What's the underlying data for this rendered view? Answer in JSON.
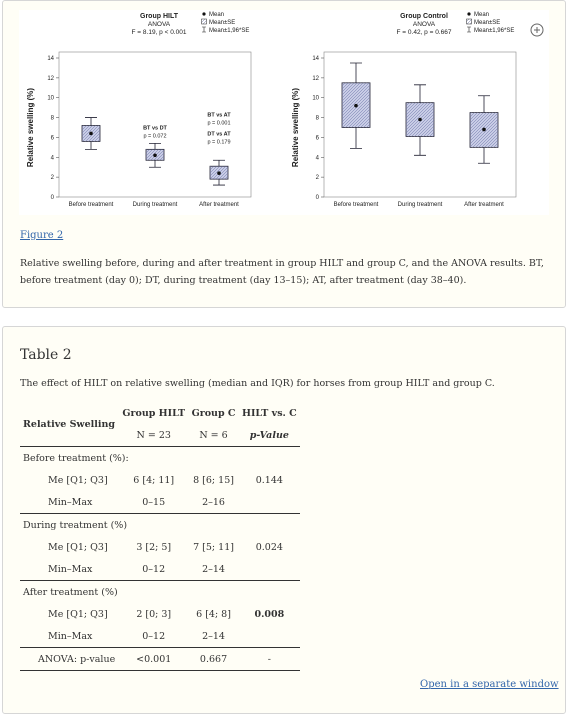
{
  "figure": {
    "charts": [
      {
        "type": "box",
        "title": "Group HILT",
        "subtitle": "ANOVA",
        "stat": "F = 8.19, p < 0.001",
        "ylabel": "Relative swelling (%)",
        "categories": [
          "Before treatment",
          "During treatment",
          "After treatment"
        ],
        "ylim": [
          0,
          14
        ],
        "yticks": [
          0,
          2,
          4,
          6,
          8,
          10,
          12,
          14
        ],
        "color": "#c9cde6",
        "series": [
          {
            "name": "Mean",
            "values": [
              6.4,
              4.2,
              2.4
            ]
          },
          {
            "name": "Mean±SE",
            "low": [
              5.6,
              3.7,
              1.8
            ],
            "high": [
              7.2,
              4.8,
              3.1
            ]
          },
          {
            "name": "Mean±1,96*SE",
            "low": [
              4.8,
              3.0,
              1.2
            ],
            "high": [
              8.0,
              5.4,
              3.7
            ]
          }
        ],
        "annotations": [
          null,
          [
            "BT vs DT",
            "p = 0.072"
          ],
          [
            "BT vs AT",
            "p = 0.001",
            "DT vs AT",
            "p = 0.179"
          ]
        ]
      },
      {
        "type": "box",
        "title": "Group Control",
        "subtitle": "ANOVA",
        "stat": "F = 0.42, p = 0.667",
        "ylabel": "Relative swelling (%)",
        "categories": [
          "Before treatment",
          "During treatment",
          "After treatment"
        ],
        "ylim": [
          0,
          14
        ],
        "yticks": [
          0,
          2,
          4,
          6,
          8,
          10,
          12,
          14
        ],
        "color": "#c9cde6",
        "series": [
          {
            "name": "Mean",
            "values": [
              9.2,
              7.8,
              6.8
            ]
          },
          {
            "name": "Mean±SE",
            "low": [
              7.0,
              6.1,
              5.0
            ],
            "high": [
              11.5,
              9.5,
              8.5
            ]
          },
          {
            "name": "Mean±1,96*SE",
            "low": [
              4.9,
              4.2,
              3.4
            ],
            "high": [
              13.5,
              11.3,
              10.2
            ]
          }
        ]
      }
    ],
    "link": "Figure 2",
    "caption": "Relative swelling before, during and after treatment in group HILT and group C, and the ANOVA results. BT, before treatment (day 0); DT, during treatment (day 13–15); AT, after treatment (day 38–40)."
  },
  "table": {
    "title": "Table 2",
    "caption": "The effect of HILT on relative swelling (median and IQR) for horses from group HILT and group C.",
    "headers": [
      "Relative Swelling",
      "Group HILT",
      "Group C",
      "HILT vs. C"
    ],
    "subheaders": [
      "N = 23",
      "N = 6",
      "p-Value"
    ],
    "sections": [
      {
        "title": "Before treatment (%):",
        "rows": [
          {
            "cells": [
              "Me [Q1; Q3]",
              "6 [4; 11]",
              "8 [6; 15]",
              "0.144"
            ]
          },
          {
            "cells": [
              "Min–Max",
              "0–15",
              "2–16"
            ]
          }
        ]
      },
      {
        "title": "During treatment (%)",
        "rows": [
          {
            "cells": [
              "Me [Q1; Q3]",
              "3 [2; 5]",
              "7 [5; 11]",
              "0.024"
            ]
          },
          {
            "cells": [
              "Min–Max",
              "0–12",
              "2–14"
            ]
          }
        ]
      },
      {
        "title": "After treatment (%)",
        "rows": [
          {
            "cells": [
              "Me [Q1; Q3]",
              "2 [0; 3]",
              "6 [4; 8]",
              "0.008"
            ],
            "bold_value": true
          },
          {
            "cells": [
              "Min–Max",
              "0–12",
              "2–14"
            ]
          }
        ]
      }
    ],
    "footer": [
      "ANOVA: p-value",
      "<0.001",
      "0.667",
      "-"
    ],
    "link": "Open in a separate window"
  }
}
